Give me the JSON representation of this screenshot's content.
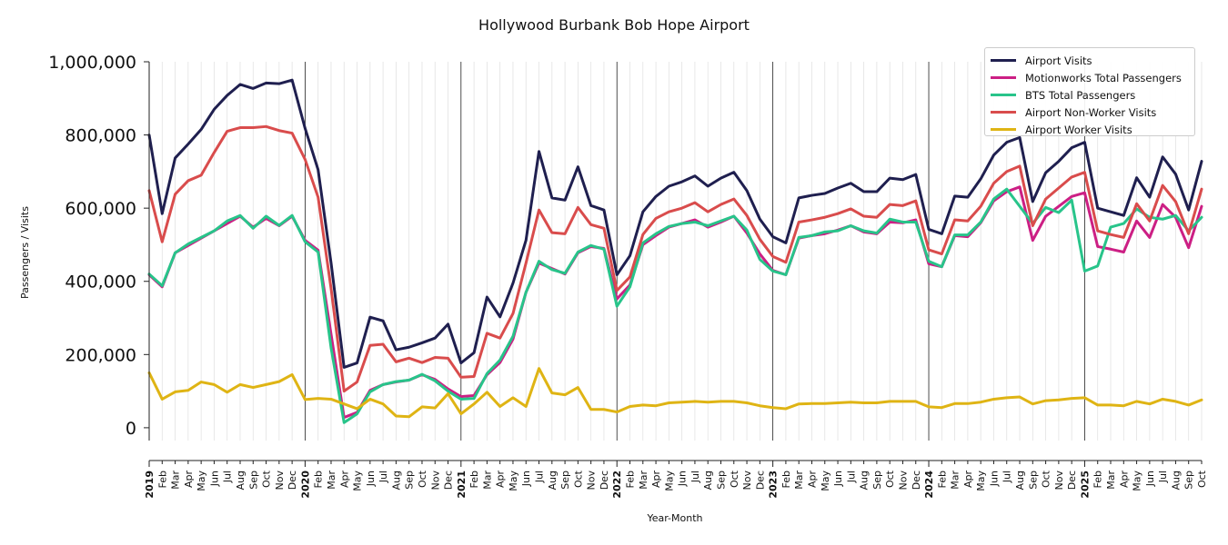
{
  "chart_data": {
    "type": "line",
    "title": "Hollywood Burbank Bob Hope Airport",
    "xlabel": "Year-Month",
    "ylabel": "Passengers / Visits",
    "ylim": [
      -35000,
      1000000
    ],
    "yticks": [
      0,
      200000,
      400000,
      600000,
      800000,
      1000000
    ],
    "ytick_labels": [
      "0",
      "200,000",
      "400,000",
      "600,000",
      "800,000",
      "1,000,000"
    ],
    "grid": "vertical minor lines each month, dark lines at year starts",
    "legend_position": "top-right",
    "x_month_labels": [
      "2019",
      "Feb",
      "Mar",
      "Apr",
      "May",
      "Jun",
      "Jul",
      "Aug",
      "Sep",
      "Oct",
      "Nov",
      "Dec",
      "2020",
      "Feb",
      "Mar",
      "Apr",
      "May",
      "Jun",
      "Jul",
      "Aug",
      "Sep",
      "Oct",
      "Nov",
      "Dec",
      "2021",
      "Feb",
      "Mar",
      "Apr",
      "May",
      "Jun",
      "Jul",
      "Aug",
      "Sep",
      "Oct",
      "Nov",
      "Dec",
      "2022",
      "Feb",
      "Mar",
      "Apr",
      "May",
      "Jun",
      "Jul",
      "Aug",
      "Sep",
      "Oct",
      "Nov",
      "Dec",
      "2023",
      "Feb",
      "Mar",
      "Apr",
      "May",
      "Jun",
      "Jul",
      "Aug",
      "Sep",
      "Oct",
      "Nov",
      "Dec",
      "2024",
      "Feb",
      "Mar",
      "Apr",
      "May",
      "Jun",
      "Jul",
      "Aug",
      "Sep",
      "Oct",
      "Nov",
      "Dec",
      "2025",
      "Feb",
      "Mar",
      "Apr",
      "May",
      "Jun",
      "Jul",
      "Aug",
      "Sep",
      "Oct"
    ],
    "year_label_indices": [
      0,
      12,
      24,
      36,
      48,
      60,
      72
    ],
    "series": [
      {
        "name": "Airport Visits",
        "color": "#1f1f4f",
        "values": [
          800000,
          585000,
          737000,
          775000,
          815000,
          870000,
          908000,
          938000,
          927000,
          942000,
          940000,
          950000,
          818000,
          705000,
          450000,
          165000,
          177000,
          302000,
          292000,
          213000,
          220000,
          232000,
          245000,
          283000,
          177000,
          205000,
          357000,
          303000,
          395000,
          512000,
          755000,
          628000,
          622000,
          713000,
          607000,
          595000,
          418000,
          470000,
          590000,
          632000,
          660000,
          672000,
          688000,
          660000,
          682000,
          698000,
          648000,
          570000,
          522000,
          505000,
          628000,
          635000,
          640000,
          655000,
          668000,
          645000,
          645000,
          682000,
          678000,
          692000,
          542000,
          530000,
          633000,
          630000,
          680000,
          745000,
          780000,
          793000,
          618000,
          697000,
          728000,
          765000,
          780000,
          600000,
          590000,
          580000,
          683000,
          630000,
          740000,
          693000,
          595000,
          728000
        ]
      },
      {
        "name": "Motionworks Total Passengers",
        "color": "#cc1f84",
        "values": [
          418000,
          385000,
          478000,
          498000,
          518000,
          538000,
          558000,
          578000,
          548000,
          572000,
          552000,
          578000,
          512000,
          485000,
          255000,
          28000,
          42000,
          102000,
          118000,
          125000,
          130000,
          145000,
          132000,
          106000,
          85000,
          88000,
          145000,
          178000,
          242000,
          370000,
          450000,
          435000,
          420000,
          478000,
          495000,
          490000,
          352000,
          390000,
          500000,
          525000,
          548000,
          558000,
          568000,
          548000,
          562000,
          578000,
          532000,
          475000,
          430000,
          418000,
          518000,
          525000,
          530000,
          540000,
          552000,
          535000,
          530000,
          562000,
          560000,
          568000,
          448000,
          440000,
          525000,
          522000,
          560000,
          620000,
          645000,
          658000,
          512000,
          578000,
          605000,
          632000,
          642000,
          495000,
          488000,
          480000,
          565000,
          520000,
          610000,
          575000,
          492000,
          605000
        ]
      },
      {
        "name": "BTS Total Passengers",
        "color": "#28c48a",
        "values": [
          420000,
          388000,
          478000,
          502000,
          520000,
          538000,
          565000,
          580000,
          545000,
          578000,
          553000,
          580000,
          508000,
          480000,
          218000,
          14000,
          38000,
          98000,
          118000,
          126000,
          130000,
          146000,
          128000,
          100000,
          78000,
          80000,
          148000,
          185000,
          250000,
          370000,
          455000,
          432000,
          422000,
          480000,
          498000,
          488000,
          332000,
          385000,
          505000,
          530000,
          550000,
          558000,
          562000,
          552000,
          565000,
          578000,
          540000,
          460000,
          428000,
          418000,
          520000,
          525000,
          535000,
          538000,
          552000,
          538000,
          532000,
          570000,
          562000,
          562000,
          455000,
          440000,
          527000,
          527000,
          562000,
          625000,
          652000,
          605000,
          558000,
          602000,
          588000,
          622000,
          428000,
          442000,
          548000,
          558000,
          598000,
          575000,
          570000,
          580000,
          538000,
          575000
        ]
      },
      {
        "name": "Airport Non-Worker Visits",
        "color": "#d94c4c",
        "values": [
          648000,
          508000,
          638000,
          675000,
          690000,
          752000,
          810000,
          820000,
          820000,
          823000,
          812000,
          805000,
          733000,
          630000,
          380000,
          100000,
          125000,
          225000,
          228000,
          180000,
          190000,
          178000,
          192000,
          190000,
          138000,
          140000,
          258000,
          245000,
          312000,
          450000,
          595000,
          533000,
          530000,
          602000,
          555000,
          545000,
          375000,
          412000,
          528000,
          572000,
          590000,
          600000,
          615000,
          590000,
          610000,
          625000,
          580000,
          515000,
          468000,
          452000,
          562000,
          568000,
          575000,
          585000,
          598000,
          578000,
          575000,
          610000,
          607000,
          620000,
          486000,
          475000,
          568000,
          565000,
          605000,
          668000,
          700000,
          715000,
          552000,
          625000,
          655000,
          685000,
          698000,
          538000,
          528000,
          520000,
          612000,
          565000,
          662000,
          618000,
          530000,
          652000
        ]
      },
      {
        "name": "Airport Worker Visits",
        "color": "#dfb414",
        "values": [
          150000,
          78000,
          98000,
          102000,
          125000,
          118000,
          97000,
          118000,
          110000,
          118000,
          126000,
          145000,
          77000,
          80000,
          78000,
          65000,
          52000,
          78000,
          65000,
          32000,
          30000,
          57000,
          54000,
          93000,
          38000,
          65000,
          97000,
          58000,
          82000,
          58000,
          162000,
          95000,
          90000,
          110000,
          50000,
          50000,
          43000,
          58000,
          62000,
          60000,
          68000,
          70000,
          72000,
          70000,
          72000,
          72000,
          68000,
          60000,
          55000,
          52000,
          65000,
          66000,
          66000,
          68000,
          70000,
          68000,
          68000,
          72000,
          72000,
          72000,
          57000,
          55000,
          66000,
          66000,
          70000,
          78000,
          82000,
          84000,
          65000,
          74000,
          76000,
          80000,
          82000,
          62000,
          62000,
          60000,
          72000,
          65000,
          78000,
          72000,
          62000,
          76000
        ]
      }
    ]
  }
}
